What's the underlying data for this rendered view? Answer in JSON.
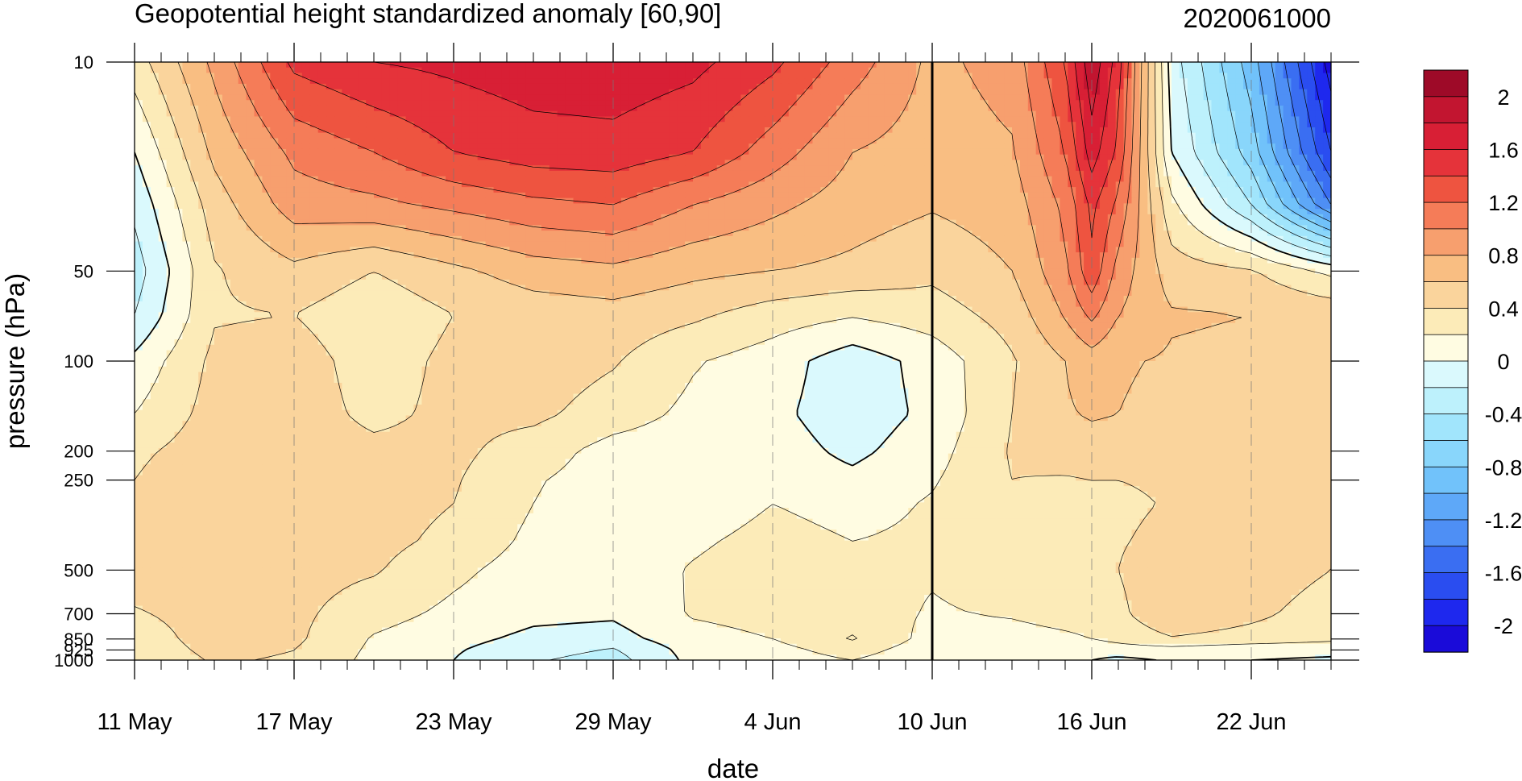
{
  "chart_data": {
    "type": "heatmap",
    "title": "Geopotential height standardized anomaly [60,90]",
    "subtitle": "2020061000",
    "xlabel": "date",
    "ylabel": "pressure (hPa)",
    "x_tick_labels": [
      "11 May",
      "17 May",
      "23 May",
      "29 May",
      "4 Jun",
      "10 Jun",
      "16 Jun",
      "22 Jun"
    ],
    "y_tick_labels": [
      "10",
      "50",
      "100",
      "200",
      "250",
      "500",
      "700",
      "850",
      "925",
      "1000"
    ],
    "y_log_scale": true,
    "ylim_hPa": [
      1000,
      10
    ],
    "x_start_day": 0,
    "x_end_day": 45,
    "x_tick_step_days": 6,
    "marked_date": "10 Jun",
    "colorbar": {
      "labels": [
        "2",
        "1.6",
        "1.2",
        "0.8",
        "0.4",
        "0",
        "-0.4",
        "-0.8",
        "-1.2",
        "-1.6",
        "-2"
      ],
      "levels": [
        -2.2,
        -2.0,
        -1.8,
        -1.6,
        -1.4,
        -1.2,
        -1.0,
        -0.8,
        -0.6,
        -0.4,
        -0.2,
        0.0,
        0.2,
        0.4,
        0.6,
        0.8,
        1.0,
        1.2,
        1.4,
        1.6,
        1.8,
        2.0,
        2.2
      ],
      "colors": [
        "#1A0BD9",
        "#1E28EE",
        "#2A4DF0",
        "#3A6EF2",
        "#4E8FF5",
        "#5EA8F8",
        "#71C2FA",
        "#89D6FB",
        "#A1E5FC",
        "#BDF1FC",
        "#DAF9FD",
        "#FFFCE2",
        "#FCEBB8",
        "#FAD49C",
        "#F9BE82",
        "#F79F6E",
        "#F57C58",
        "#EE5440",
        "#E5333A",
        "#D81F35",
        "#C21530",
        "#9E0A28"
      ]
    },
    "pressure_levels_hPa": [
      10,
      20,
      30,
      50,
      70,
      100,
      150,
      200,
      250,
      300,
      400,
      500,
      700,
      850,
      925,
      1000
    ],
    "days": [
      0,
      3,
      6,
      9,
      12,
      15,
      18,
      21,
      24,
      27,
      30,
      33,
      35,
      36,
      37,
      39,
      42,
      45
    ],
    "values": [
      [
        0.3,
        0.85,
        1.45,
        1.6,
        1.65,
        1.72,
        1.74,
        1.66,
        1.45,
        1.1,
        0.75,
        0.88,
        1.4,
        1.95,
        1.5,
        -0.1,
        -0.9,
        -2.1
      ],
      [
        0.0,
        0.65,
        1.05,
        1.2,
        1.4,
        1.5,
        1.52,
        1.4,
        1.1,
        0.8,
        0.7,
        0.78,
        1.2,
        1.7,
        1.35,
        0.0,
        -0.7,
        -1.8
      ],
      [
        -0.15,
        0.5,
        0.9,
        0.95,
        1.05,
        1.15,
        1.2,
        1.0,
        0.85,
        0.7,
        0.62,
        0.7,
        1.05,
        1.45,
        1.15,
        0.25,
        -0.4,
        -1.4
      ],
      [
        -0.3,
        0.38,
        0.55,
        0.4,
        0.55,
        0.7,
        0.75,
        0.65,
        0.6,
        0.55,
        0.45,
        0.6,
        0.95,
        1.35,
        0.92,
        0.5,
        0.42,
        0.15
      ],
      [
        -0.2,
        0.38,
        0.4,
        0.25,
        0.4,
        0.48,
        0.52,
        0.44,
        0.3,
        0.22,
        0.3,
        0.48,
        0.82,
        1.05,
        0.8,
        0.62,
        0.6,
        0.55
      ],
      [
        0.05,
        0.45,
        0.5,
        0.3,
        0.45,
        0.52,
        0.42,
        0.22,
        0.1,
        -0.12,
        0.08,
        0.38,
        0.6,
        0.7,
        0.62,
        0.58,
        0.56,
        0.55
      ],
      [
        0.2,
        0.48,
        0.5,
        0.35,
        0.45,
        0.45,
        0.3,
        0.15,
        0.05,
        -0.12,
        0.05,
        0.4,
        0.58,
        0.62,
        0.6,
        0.55,
        0.55,
        0.52
      ],
      [
        0.35,
        0.52,
        0.5,
        0.45,
        0.45,
        0.3,
        0.12,
        0.08,
        0.1,
        -0.05,
        0.12,
        0.42,
        0.5,
        0.52,
        0.52,
        0.5,
        0.5,
        0.48
      ],
      [
        0.4,
        0.6,
        0.58,
        0.46,
        0.42,
        0.22,
        0.1,
        0.05,
        0.12,
        0.05,
        0.18,
        0.4,
        0.38,
        0.4,
        0.4,
        0.44,
        0.45,
        0.42
      ],
      [
        0.45,
        0.58,
        0.55,
        0.48,
        0.4,
        0.2,
        0.08,
        0.06,
        0.2,
        0.12,
        0.22,
        0.35,
        0.34,
        0.36,
        0.35,
        0.42,
        0.44,
        0.4
      ],
      [
        0.48,
        0.56,
        0.52,
        0.46,
        0.35,
        0.15,
        0.08,
        0.16,
        0.28,
        0.2,
        0.24,
        0.32,
        0.32,
        0.34,
        0.38,
        0.47,
        0.48,
        0.42
      ],
      [
        0.5,
        0.52,
        0.48,
        0.42,
        0.25,
        0.1,
        0.06,
        0.22,
        0.34,
        0.26,
        0.22,
        0.3,
        0.32,
        0.32,
        0.4,
        0.56,
        0.52,
        0.4
      ],
      [
        0.38,
        0.48,
        0.45,
        0.28,
        0.15,
        0.05,
        0.03,
        0.22,
        0.28,
        0.3,
        0.18,
        0.22,
        0.28,
        0.3,
        0.35,
        0.58,
        0.45,
        0.3
      ],
      [
        0.3,
        0.48,
        0.44,
        0.18,
        0.06,
        -0.05,
        -0.08,
        0.12,
        0.2,
        0.42,
        0.12,
        0.12,
        0.16,
        0.2,
        0.26,
        0.38,
        0.32,
        0.25
      ],
      [
        0.28,
        0.45,
        0.4,
        0.16,
        0.02,
        -0.12,
        -0.22,
        0.08,
        0.12,
        0.3,
        0.06,
        0.04,
        0.06,
        0.08,
        0.1,
        0.12,
        0.05,
        0.04
      ],
      [
        0.25,
        0.42,
        0.38,
        0.14,
        0.0,
        -0.18,
        -0.28,
        0.06,
        0.08,
        0.2,
        0.02,
        0.0,
        0.02,
        0.0,
        -0.05,
        0.02,
        0.0,
        -0.02
      ]
    ]
  }
}
